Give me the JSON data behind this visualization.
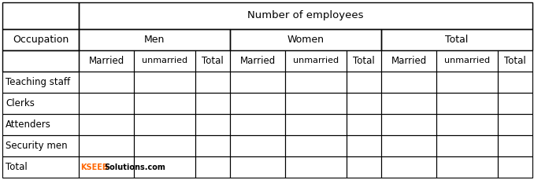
{
  "title_row": "Number of employees",
  "col_group_headers": [
    "Men",
    "Women",
    "Total"
  ],
  "col_sub_headers": [
    "Married",
    "unmarried",
    "Total"
  ],
  "row_header": "Occupation",
  "rows": [
    "Teaching staff",
    "Clerks",
    "Attenders",
    "Security men",
    "Total"
  ],
  "watermark_kseeb": "KSEEB",
  "watermark_rest": "Solutions.com",
  "watermark_color_k": "#ff6600",
  "watermark_color_s": "#000000",
  "bg_color": "#ffffff",
  "border_color": "#000000",
  "fontsize": 8.5,
  "sub_fontsize": 8
}
